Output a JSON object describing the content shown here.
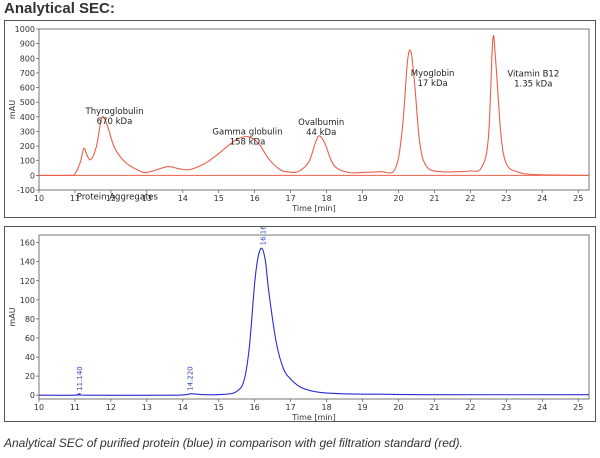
{
  "heading": "Analytical SEC:",
  "caption": "Analytical SEC of purified protein (blue) in comparison with gel filtration standard (red).",
  "chart_data": [
    {
      "type": "line",
      "ylabel": "mAU",
      "xlabel": "Time [min]",
      "xlim": [
        10,
        25.3
      ],
      "ylim": [
        -100,
        1000
      ],
      "xticks": [
        10,
        11,
        12,
        13,
        14,
        15,
        16,
        17,
        18,
        19,
        20,
        21,
        22,
        23,
        24,
        25
      ],
      "yticks": [
        -100,
        0,
        100,
        200,
        300,
        400,
        500,
        600,
        700,
        800,
        900,
        1000
      ],
      "color": "#e8604c",
      "baseline_color": "#e8604c",
      "x": [
        10.0,
        10.8,
        11.0,
        11.15,
        11.25,
        11.35,
        11.45,
        11.6,
        11.75,
        11.9,
        12.1,
        12.4,
        12.8,
        13.0,
        13.3,
        13.6,
        13.9,
        14.2,
        14.6,
        14.9,
        15.2,
        15.5,
        15.8,
        16.1,
        16.4,
        16.7,
        16.9,
        17.2,
        17.5,
        17.7,
        17.8,
        17.95,
        18.2,
        18.6,
        19.0,
        19.5,
        19.9,
        20.1,
        20.25,
        20.35,
        20.45,
        20.6,
        20.8,
        21.2,
        21.6,
        22.0,
        22.3,
        22.5,
        22.62,
        22.7,
        22.85,
        23.0,
        23.3,
        23.8,
        25.3
      ],
      "y": [
        0,
        0,
        10,
        90,
        185,
        130,
        110,
        200,
        395,
        340,
        190,
        90,
        30,
        20,
        40,
        60,
        45,
        40,
        80,
        130,
        190,
        245,
        265,
        220,
        110,
        40,
        25,
        25,
        90,
        230,
        270,
        220,
        70,
        20,
        20,
        25,
        40,
        300,
        780,
        840,
        620,
        210,
        55,
        25,
        25,
        30,
        50,
        250,
        920,
        800,
        280,
        80,
        25,
        5,
        0
      ],
      "annotations": [
        {
          "lines": [
            "Thyroglobulin",
            "670 kDa"
          ],
          "x": 12.1,
          "y": 420
        },
        {
          "lines": [
            "Gamma globulin",
            "158 kDa"
          ],
          "x": 15.8,
          "y": 280
        },
        {
          "lines": [
            "Ovalbumin",
            "44 kDa"
          ],
          "x": 17.85,
          "y": 345
        },
        {
          "lines": [
            "Myoglobin",
            "17 kDa"
          ],
          "x": 20.95,
          "y": 680
        },
        {
          "lines": [
            "Vitamin B12",
            "1.35 kDa"
          ],
          "x": 23.75,
          "y": 675
        },
        {
          "lines": [
            "Protein Aggregates"
          ],
          "x": 11.05,
          "y": -165,
          "anchor": "start"
        }
      ]
    },
    {
      "type": "line",
      "ylabel": "mAU",
      "xlabel": "Time [min]",
      "xlim": [
        10,
        25.3
      ],
      "ylim": [
        -4,
        168
      ],
      "xticks": [
        10,
        11,
        12,
        13,
        14,
        15,
        16,
        17,
        18,
        19,
        20,
        21,
        22,
        23,
        24,
        25
      ],
      "yticks": [
        0,
        20,
        40,
        60,
        80,
        100,
        120,
        140,
        160
      ],
      "color": "#2a2ad0",
      "x": [
        10.0,
        11.0,
        11.14,
        11.3,
        13.8,
        14.22,
        14.6,
        15.2,
        15.5,
        15.7,
        15.85,
        16.0,
        16.1,
        16.2,
        16.3,
        16.4,
        16.6,
        16.8,
        17.0,
        17.3,
        17.8,
        18.5,
        19.5,
        21.0,
        25.3
      ],
      "y": [
        0,
        0,
        1.5,
        0,
        0,
        1.5,
        0.5,
        1,
        4,
        15,
        50,
        118,
        146,
        154,
        140,
        106,
        55,
        28,
        17,
        8,
        3,
        1.5,
        1,
        0.5,
        0.5
      ],
      "peak_labels": [
        {
          "text": "11.140",
          "x": 11.14
        },
        {
          "text": "14.220",
          "x": 14.22
        },
        {
          "text": "16.162",
          "x": 16.25
        }
      ]
    }
  ]
}
